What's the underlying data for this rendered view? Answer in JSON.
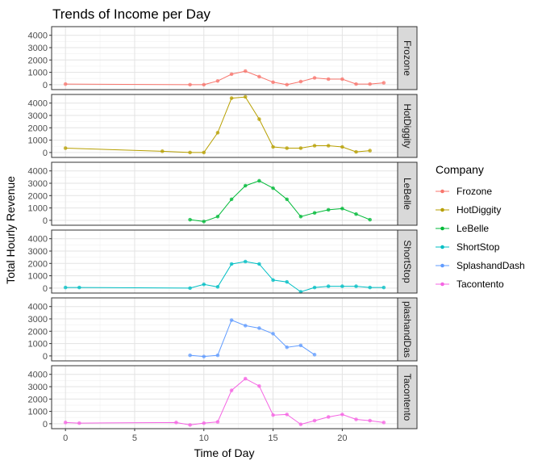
{
  "chart_data": {
    "type": "line",
    "title": "Trends of Income per Day",
    "xlabel": "Time of Day",
    "ylabel": "Total Hourly Revenue",
    "xlim": [
      -1,
      24
    ],
    "ylim": [
      -400,
      4700
    ],
    "x_ticks": [
      0,
      5,
      10,
      15,
      20
    ],
    "y_ticks": [
      0,
      1000,
      2000,
      3000,
      4000
    ],
    "grid": true,
    "facet": "rows by company",
    "legend": {
      "title": "Company",
      "position": "right"
    },
    "series": [
      {
        "name": "Frozone",
        "strip_label": "Frozone",
        "color": "#F8766D",
        "points": [
          [
            0,
            50
          ],
          [
            9,
            0
          ],
          [
            10,
            0
          ],
          [
            11,
            300
          ],
          [
            12,
            850
          ],
          [
            13,
            1100
          ],
          [
            14,
            650
          ],
          [
            15,
            200
          ],
          [
            16,
            0
          ],
          [
            17,
            250
          ],
          [
            18,
            550
          ],
          [
            19,
            450
          ],
          [
            20,
            450
          ],
          [
            21,
            50
          ],
          [
            22,
            50
          ],
          [
            23,
            150
          ]
        ]
      },
      {
        "name": "HotDiggity",
        "strip_label": "HotDiggity",
        "color": "#B79F00",
        "points": [
          [
            0,
            350
          ],
          [
            7,
            100
          ],
          [
            9,
            0
          ],
          [
            10,
            0
          ],
          [
            11,
            1600
          ],
          [
            12,
            4400
          ],
          [
            13,
            4500
          ],
          [
            14,
            2700
          ],
          [
            15,
            450
          ],
          [
            16,
            350
          ],
          [
            17,
            350
          ],
          [
            18,
            550
          ],
          [
            19,
            550
          ],
          [
            20,
            450
          ],
          [
            21,
            50
          ],
          [
            22,
            150
          ]
        ]
      },
      {
        "name": "LeBelle",
        "strip_label": "LeBelle",
        "color": "#00BA38",
        "points": [
          [
            9,
            50
          ],
          [
            10,
            -100
          ],
          [
            11,
            300
          ],
          [
            12,
            1700
          ],
          [
            13,
            2800
          ],
          [
            14,
            3200
          ],
          [
            15,
            2600
          ],
          [
            16,
            1700
          ],
          [
            17,
            300
          ],
          [
            18,
            600
          ],
          [
            19,
            850
          ],
          [
            20,
            950
          ],
          [
            21,
            500
          ],
          [
            22,
            50
          ]
        ]
      },
      {
        "name": "ShortStop",
        "strip_label": "ShortStop",
        "color": "#00BFC4",
        "points": [
          [
            0,
            50
          ],
          [
            1,
            50
          ],
          [
            9,
            0
          ],
          [
            10,
            300
          ],
          [
            11,
            100
          ],
          [
            12,
            1950
          ],
          [
            13,
            2150
          ],
          [
            14,
            1950
          ],
          [
            15,
            650
          ],
          [
            16,
            500
          ],
          [
            17,
            -300
          ],
          [
            18,
            50
          ],
          [
            19,
            150
          ],
          [
            20,
            150
          ],
          [
            21,
            150
          ],
          [
            22,
            50
          ],
          [
            23,
            50
          ]
        ]
      },
      {
        "name": "SplashandDash",
        "strip_label": "plashandDas",
        "color": "#619CFF",
        "points": [
          [
            9,
            50
          ],
          [
            10,
            -50
          ],
          [
            11,
            50
          ],
          [
            12,
            2900
          ],
          [
            13,
            2450
          ],
          [
            14,
            2250
          ],
          [
            15,
            1800
          ],
          [
            16,
            700
          ],
          [
            17,
            850
          ],
          [
            18,
            100
          ]
        ]
      },
      {
        "name": "Tacontento",
        "strip_label": "Tacontento",
        "color": "#F564E3",
        "points": [
          [
            0,
            100
          ],
          [
            1,
            50
          ],
          [
            8,
            100
          ],
          [
            9,
            -100
          ],
          [
            10,
            50
          ],
          [
            11,
            150
          ],
          [
            12,
            2700
          ],
          [
            13,
            3650
          ],
          [
            14,
            3050
          ],
          [
            15,
            700
          ],
          [
            16,
            750
          ],
          [
            17,
            -50
          ],
          [
            18,
            250
          ],
          [
            19,
            550
          ],
          [
            20,
            750
          ],
          [
            21,
            350
          ],
          [
            22,
            250
          ],
          [
            23,
            100
          ]
        ]
      }
    ]
  }
}
